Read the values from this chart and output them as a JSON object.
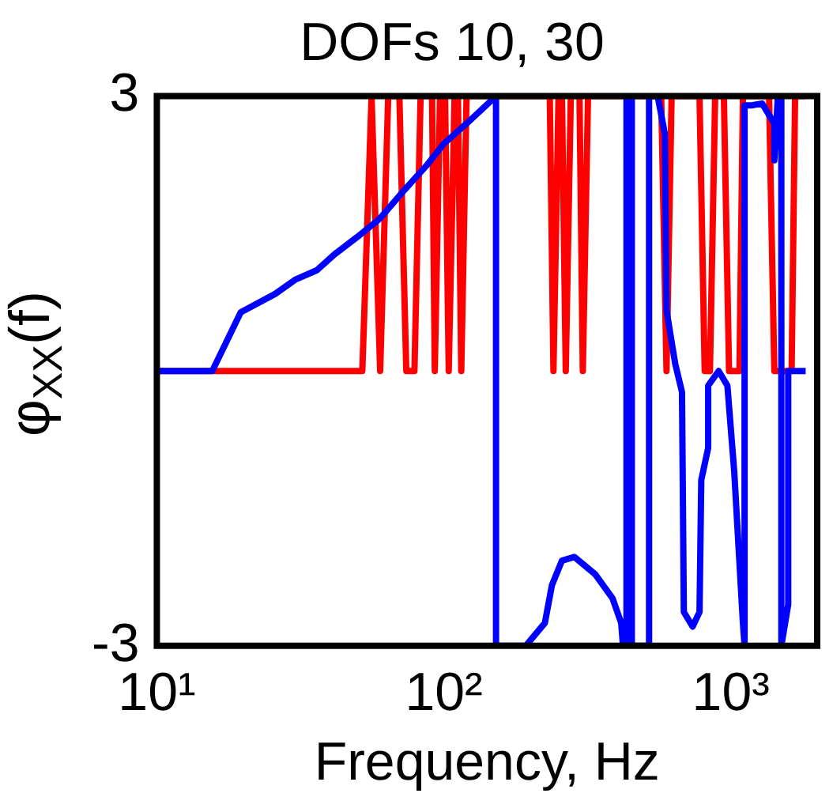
{
  "chart_data": {
    "type": "line",
    "title": "DOFs 10, 30",
    "xlabel": "Frequency, Hz",
    "ylabel": "φ$_{XX}$(f)",
    "log": "x",
    "xlim": [
      10,
      2000
    ],
    "ylim": [
      -3,
      3
    ],
    "xticks": [
      {
        "value": 10,
        "label": "10¹"
      },
      {
        "value": 100,
        "label": "10²"
      },
      {
        "value": 1000,
        "label": "10³"
      }
    ],
    "yticks": [
      -3,
      3
    ],
    "grid": false,
    "legend": false,
    "marker": "none",
    "line_style": "solid",
    "series": [
      {
        "color": "#ff0000",
        "x": [
          10,
          52,
          56,
          60,
          64,
          70,
          74,
          79,
          83,
          91,
          93,
          97,
          101,
          104,
          109,
          112,
          115,
          120,
          234,
          241,
          251,
          258,
          266,
          277,
          297,
          305,
          318,
          572,
          597,
          622,
          778,
          811,
          846,
          882,
          946,
          986,
          1072,
          1102,
          1359,
          1418,
          1629,
          1675,
          1823
        ],
        "values": [
          0,
          0,
          3,
          0,
          3,
          3,
          0,
          0,
          3,
          3,
          0,
          3,
          3,
          0,
          3,
          3,
          0,
          3,
          3,
          0,
          3,
          3,
          0,
          3,
          3,
          0,
          3,
          3,
          0,
          3,
          3,
          0,
          0,
          3,
          3,
          0,
          0,
          3,
          3,
          0,
          0,
          3,
          3
        ]
      },
      {
        "color": "#0000ff",
        "x": [
          10,
          15.6,
          19.6,
          25.8,
          30.5,
          36.1,
          41.5,
          49.8,
          59.7,
          72.6,
          86.9,
          100,
          120,
          152,
          152,
          193,
          225,
          238,
          258,
          285,
          337,
          387,
          415,
          421,
          433,
          433,
          452,
          452,
          519,
          519,
          556,
          589,
          597,
          640,
          676,
          686,
          736,
          778,
          789,
          834,
          834,
          907,
          973,
          1028,
          1102,
          1117,
          1117,
          1182,
          1285,
          1418,
          1418,
          1459,
          1500,
          1500,
          1585,
          1585,
          1823
        ],
        "values": [
          0,
          0,
          0.64,
          0.84,
          1.0,
          1.1,
          1.27,
          1.46,
          1.66,
          1.97,
          2.24,
          2.48,
          2.7,
          3,
          -3,
          -3,
          -2.75,
          -2.34,
          -2.07,
          -2.03,
          -2.22,
          -2.48,
          -2.75,
          -3,
          -3,
          3,
          3,
          -3,
          -3,
          3,
          3,
          2.59,
          0.66,
          0.08,
          -0.23,
          -2.63,
          -2.79,
          -2.63,
          -1.19,
          -0.84,
          -0.16,
          0,
          -0.16,
          -1.1,
          -2.75,
          -3,
          2.9,
          2.9,
          2.92,
          2.7,
          2.3,
          3,
          3,
          -3,
          -2.55,
          0,
          0
        ]
      }
    ]
  }
}
